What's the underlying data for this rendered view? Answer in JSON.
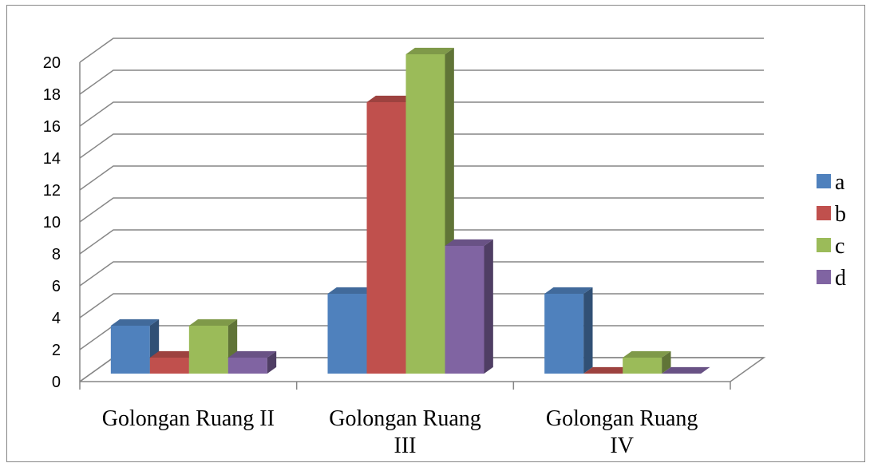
{
  "chart_data": {
    "type": "bar",
    "style": "3d-clustered-column",
    "categories": [
      "Golongan Ruang II",
      "Golongan Ruang III",
      "Golongan Ruang IV"
    ],
    "category_display": [
      [
        "Golongan Ruang II"
      ],
      [
        "Golongan Ruang",
        "III"
      ],
      [
        "Golongan Ruang",
        "IV"
      ]
    ],
    "series": [
      {
        "name": "a",
        "values": [
          3,
          5,
          5
        ],
        "color": "#4F81BD"
      },
      {
        "name": "b",
        "values": [
          1,
          17,
          0
        ],
        "color": "#C0504D"
      },
      {
        "name": "c",
        "values": [
          3,
          20,
          1
        ],
        "color": "#9BBB59"
      },
      {
        "name": "d",
        "values": [
          1,
          8,
          0
        ],
        "color": "#8064A2"
      }
    ],
    "ylim": [
      0,
      20
    ],
    "yticks": [
      0,
      2,
      4,
      6,
      8,
      10,
      12,
      14,
      16,
      18,
      20
    ],
    "ytick_labels": [
      "0",
      "2",
      "4",
      "6",
      "8",
      "10",
      "12",
      "14",
      "16",
      "18",
      "20"
    ],
    "title": "",
    "xlabel": "",
    "ylabel": "",
    "grid": true,
    "legend_position": "right"
  }
}
